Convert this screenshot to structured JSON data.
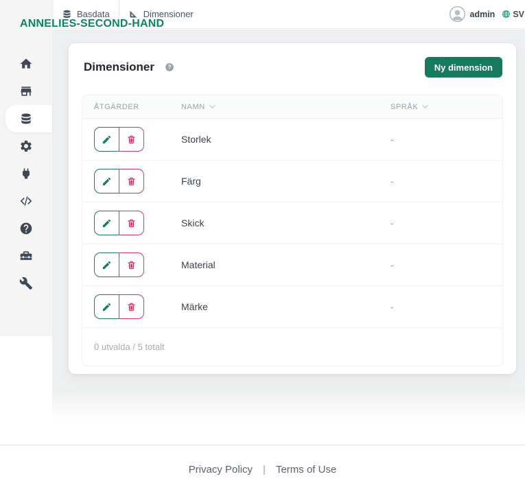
{
  "brand": "ANNELIES-SECOND-HAND",
  "topbar": {
    "tabs": [
      {
        "label": "Basdata",
        "icon": "database-icon"
      },
      {
        "label": "Dimensioner",
        "icon": "ruler-icon"
      }
    ],
    "user_label": "admin",
    "language_label": "SV"
  },
  "sidebar": {
    "items": [
      {
        "icon": "home-icon",
        "active": false
      },
      {
        "icon": "store-icon",
        "active": false
      },
      {
        "icon": "database-icon",
        "active": true
      },
      {
        "icon": "settings-gear-icon",
        "active": false
      },
      {
        "icon": "plug-icon",
        "active": false
      },
      {
        "icon": "code-icon",
        "active": false
      },
      {
        "icon": "help-icon",
        "active": false
      },
      {
        "icon": "toolbox-icon",
        "active": false
      },
      {
        "icon": "wrench-icon",
        "active": false
      }
    ]
  },
  "page": {
    "title": "Dimensioner",
    "new_button_label": "Ny dimension",
    "table": {
      "headers": [
        {
          "label": "ÅTGÄRDER",
          "sortable": false
        },
        {
          "label": "NAMN",
          "sortable": true
        },
        {
          "label": "SPRÅK",
          "sortable": true
        }
      ],
      "rows": [
        {
          "name": "Storlek",
          "language": "-"
        },
        {
          "name": "Färg",
          "language": "-"
        },
        {
          "name": "Skick",
          "language": "-"
        },
        {
          "name": "Material",
          "language": "-"
        },
        {
          "name": "Märke",
          "language": "-"
        }
      ],
      "selection_summary": "0 utvalda / 5 totalt"
    }
  },
  "page_footer": {
    "links": [
      "Privacy Policy",
      "Terms of Use"
    ],
    "separator": "|"
  },
  "colors": {
    "brand_green": "#0e8560",
    "button_green": "#157a5e",
    "edit_green": "#1d7a60",
    "danger_pink": "#d6336c",
    "globe_green": "#1f9b72",
    "sidebar_gray": "#f5f5f6",
    "content_gray": "#eeeff0"
  }
}
